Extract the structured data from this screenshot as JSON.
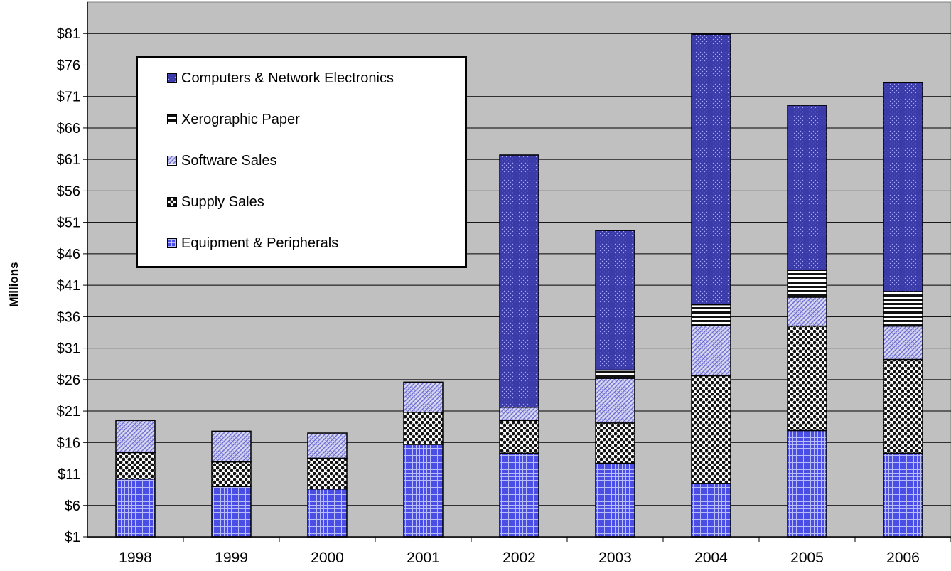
{
  "chart_data": {
    "type": "bar",
    "stacked": true,
    "ylabel": "Millions",
    "xlabel": "",
    "title": "",
    "ylim": [
      1,
      86
    ],
    "yticks": [
      "$1",
      "$6",
      "$11",
      "$16",
      "$21",
      "$26",
      "$31",
      "$36",
      "$41",
      "$46",
      "$51",
      "$56",
      "$61",
      "$66",
      "$71",
      "$76",
      "$81"
    ],
    "ytick_values": [
      1,
      6,
      11,
      16,
      21,
      26,
      31,
      36,
      41,
      46,
      51,
      56,
      61,
      66,
      71,
      76,
      81
    ],
    "categories": [
      "1998",
      "1999",
      "2000",
      "2001",
      "2002",
      "2003",
      "2004",
      "2005",
      "2006"
    ],
    "series": [
      {
        "name": "Equipment & Peripherals",
        "color": "#4a4ee6",
        "pattern": "grid",
        "values": [
          9.2,
          8.0,
          7.6,
          14.7,
          13.3,
          11.7,
          8.5,
          16.9,
          13.3
        ]
      },
      {
        "name": "Supply Sales",
        "color": "#111111",
        "pattern": "checker",
        "values": [
          4.2,
          3.9,
          4.9,
          5.1,
          5.2,
          6.4,
          17.1,
          16.6,
          14.9
        ]
      },
      {
        "name": "Software Sales",
        "color": "#8a8ae0",
        "pattern": "hatch",
        "values": [
          5.1,
          4.9,
          4.0,
          4.8,
          2.1,
          7.1,
          8.0,
          4.6,
          5.3
        ]
      },
      {
        "name": "Xerographic Paper",
        "color": "#111111",
        "pattern": "hstripes",
        "values": [
          0,
          0,
          0,
          0,
          0,
          1.3,
          3.3,
          4.3,
          5.5
        ]
      },
      {
        "name": "Computers & Network Electronics",
        "color": "#3a3aa8",
        "pattern": "dots",
        "values": [
          0,
          0,
          0,
          0,
          40.1,
          22.2,
          43.0,
          26.2,
          33.2
        ]
      }
    ],
    "legend_order": [
      "Computers & Network Electronics",
      "Xerographic Paper",
      "Software Sales",
      "Supply Sales",
      "Equipment & Peripherals"
    ],
    "legend_position": "top-left",
    "grid": true,
    "plot_background": "#c0c0c0"
  }
}
